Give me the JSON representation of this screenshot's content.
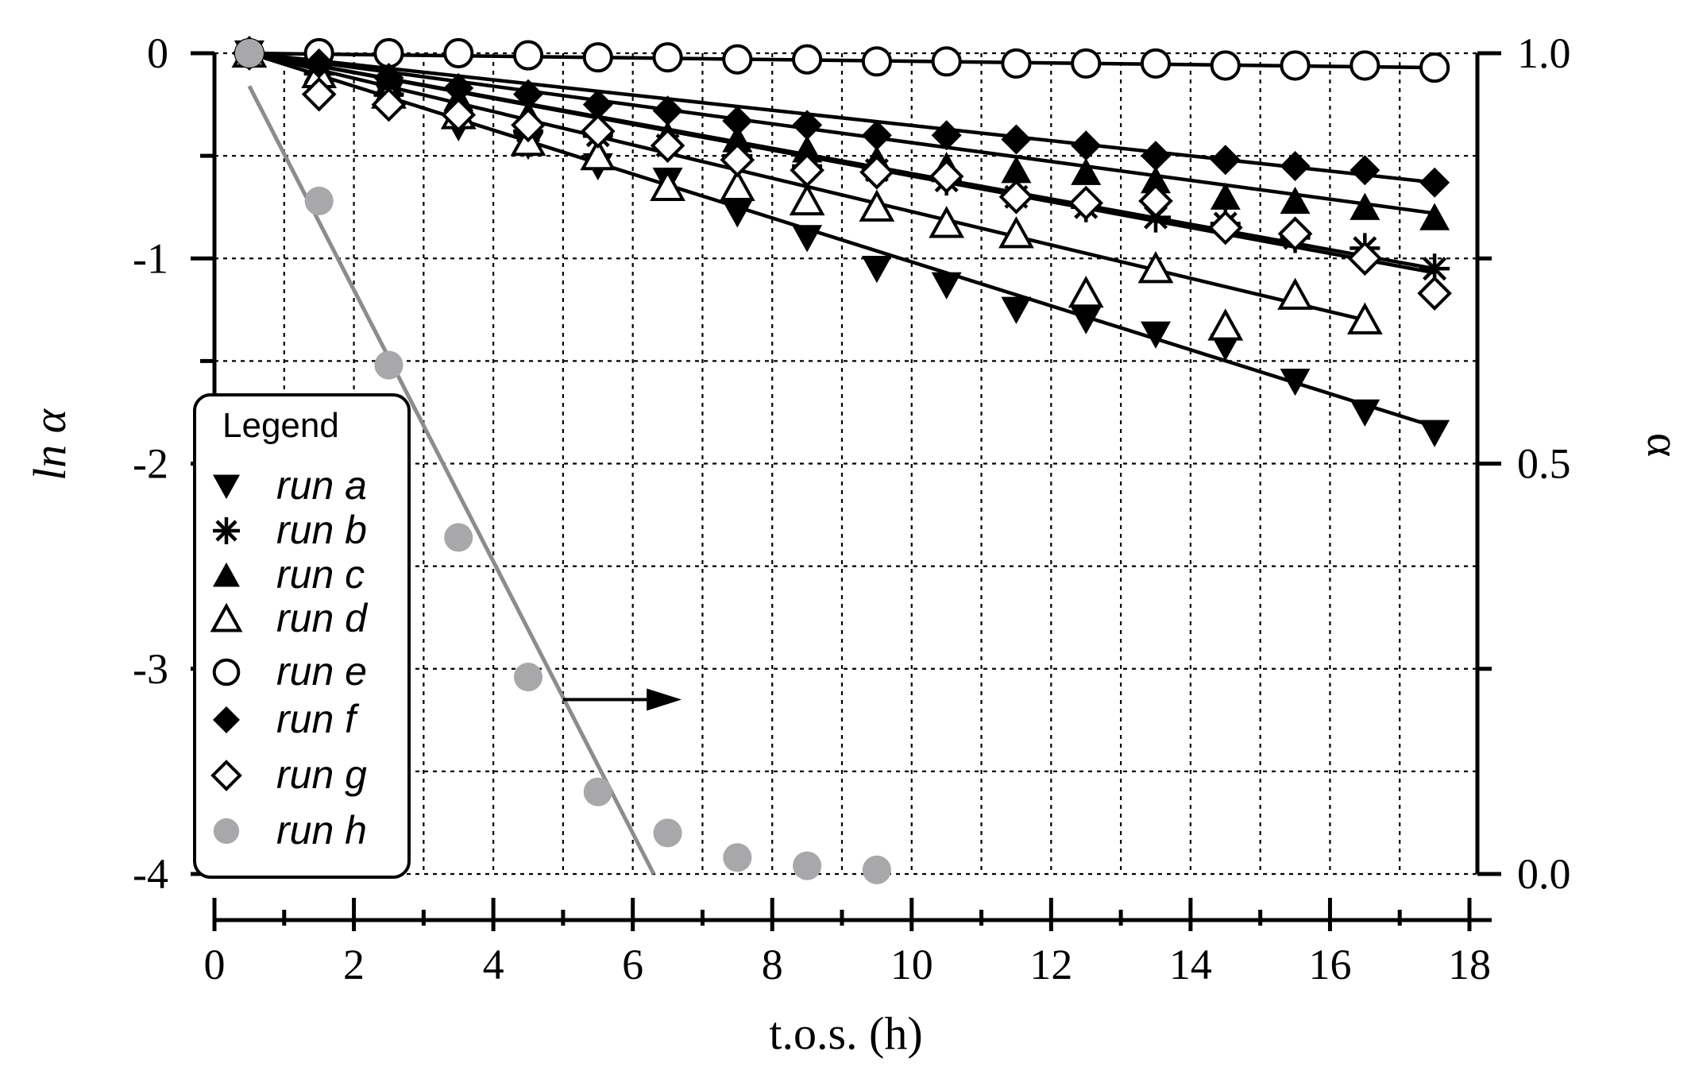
{
  "chart_data": {
    "type": "scatter",
    "xlabel": "t.o.s. (h)",
    "ylabel": "ln α",
    "y2label": "α",
    "xlim": [
      0,
      18
    ],
    "ylim": [
      -4,
      0
    ],
    "y2lim": [
      0.0,
      1.0
    ],
    "xticks": [
      "0",
      "2",
      "4",
      "6",
      "8",
      "10",
      "12",
      "14",
      "16",
      "18"
    ],
    "yticks": [
      "0",
      "-1",
      "-2",
      "-3",
      "-4"
    ],
    "y2ticks": [
      "1.0",
      "0.5",
      "0.0"
    ],
    "grid": true,
    "legend": {
      "title": "Legend",
      "position": "bottom-left"
    },
    "x": [
      0.5,
      1.5,
      2.5,
      3.5,
      4.5,
      5.5,
      6.5,
      7.5,
      8.5,
      9.5,
      10.5,
      11.5,
      12.5,
      13.5,
      14.5,
      15.5,
      16.5,
      17.5
    ],
    "series": [
      {
        "name": "run a",
        "marker": "down-triangle-filled",
        "axis": "left",
        "values": [
          0,
          -0.1,
          -0.2,
          -0.36,
          -0.45,
          -0.55,
          -0.62,
          -0.78,
          -0.9,
          -1.05,
          -1.13,
          -1.25,
          -1.3,
          -1.37,
          -1.43,
          -1.6,
          -1.75,
          -1.85
        ],
        "fit": [
          [
            0.5,
            0
          ],
          [
            17.5,
            -1.82
          ]
        ]
      },
      {
        "name": "run b",
        "marker": "asterisk",
        "axis": "left",
        "values": [
          0,
          -0.1,
          -0.2,
          -0.3,
          -0.38,
          -0.4,
          -0.45,
          -0.5,
          -0.55,
          -0.57,
          -0.62,
          -0.7,
          -0.75,
          -0.8,
          -0.83,
          -0.9,
          -0.95,
          -1.05
        ],
        "fit": [
          [
            0.5,
            0
          ],
          [
            17.5,
            -1.05
          ]
        ]
      },
      {
        "name": "run c",
        "marker": "up-triangle-filled",
        "axis": "left",
        "values": [
          0,
          -0.08,
          -0.15,
          -0.22,
          -0.3,
          -0.35,
          -0.4,
          -0.42,
          -0.47,
          -0.52,
          -0.55,
          -0.57,
          -0.58,
          -0.62,
          -0.7,
          -0.72,
          -0.75,
          -0.8
        ],
        "fit": [
          [
            0.5,
            0
          ],
          [
            17.5,
            -0.78
          ]
        ]
      },
      {
        "name": "run d",
        "marker": "up-triangle-open",
        "axis": "left",
        "values": [
          0,
          -0.1,
          -0.2,
          -0.3,
          -0.43,
          -0.5,
          -0.65,
          -0.65,
          -0.72,
          -0.75,
          -0.83,
          -0.88,
          -1.17,
          -1.05,
          -1.33,
          -1.18,
          -1.3,
          null
        ],
        "fit": [
          [
            0.5,
            0
          ],
          [
            16.5,
            -1.3
          ]
        ]
      },
      {
        "name": "run e",
        "marker": "circle-open",
        "axis": "left",
        "values": [
          0,
          0,
          0,
          0,
          -0.01,
          -0.02,
          -0.02,
          -0.03,
          -0.03,
          -0.04,
          -0.04,
          -0.05,
          -0.05,
          -0.05,
          -0.06,
          -0.06,
          -0.06,
          -0.07
        ],
        "fit": [
          [
            0.5,
            0
          ],
          [
            17.5,
            -0.07
          ]
        ]
      },
      {
        "name": "run f",
        "marker": "diamond-filled",
        "axis": "left",
        "values": [
          0,
          -0.05,
          -0.12,
          -0.17,
          -0.2,
          -0.25,
          -0.28,
          -0.33,
          -0.35,
          -0.4,
          -0.4,
          -0.42,
          -0.45,
          -0.5,
          -0.52,
          -0.55,
          -0.57,
          -0.63
        ],
        "fit": [
          [
            0.5,
            0
          ],
          [
            17.5,
            -0.63
          ]
        ]
      },
      {
        "name": "run g",
        "marker": "diamond-open",
        "axis": "left",
        "values": [
          0,
          -0.2,
          -0.25,
          -0.3,
          -0.35,
          -0.38,
          -0.45,
          -0.52,
          -0.57,
          -0.58,
          -0.6,
          -0.7,
          -0.73,
          -0.72,
          -0.85,
          -0.88,
          -1.0,
          -1.17
        ],
        "fit": [
          [
            0.5,
            0
          ],
          [
            17.5,
            -1.07
          ]
        ]
      },
      {
        "name": "run h",
        "marker": "circle-filled-gray",
        "axis": "right",
        "values": [
          1.0,
          0.82,
          0.62,
          0.41,
          0.24,
          0.1,
          0.05,
          0.02,
          0.01,
          0.005,
          null,
          null,
          null,
          null,
          null,
          null,
          null,
          null
        ],
        "fit": [
          [
            0.5,
            0.96
          ],
          [
            6.3,
            0.0
          ]
        ]
      }
    ],
    "annotation_arrow": {
      "from": [
        5,
        -3.15
      ],
      "to": [
        6.7,
        -3.15
      ]
    }
  }
}
